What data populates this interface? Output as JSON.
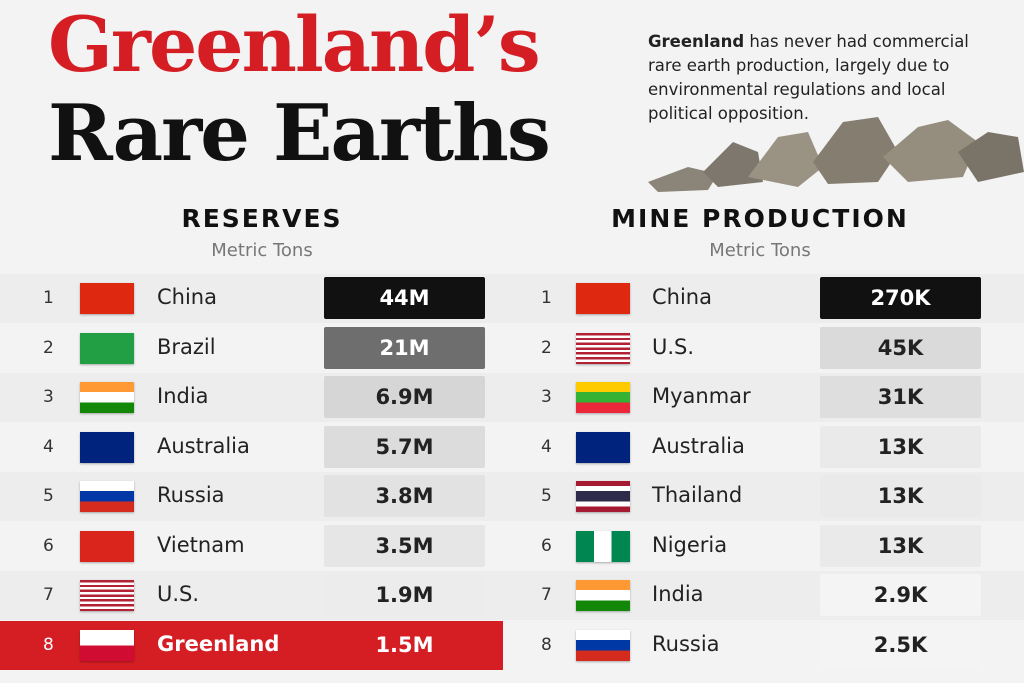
{
  "header": {
    "title_line1": "Greenland’s",
    "title_line2": "Rare Earths",
    "intro_bold": "Greenland",
    "intro_rest": " has never had commercial rare earth production, largely due to environmental regulations and local political opposition."
  },
  "reserves": {
    "heading": "RESERVES",
    "unit": "Metric Tons",
    "rows": [
      [
        1,
        "China",
        "44M"
      ],
      [
        2,
        "Brazil",
        "21M"
      ],
      [
        3,
        "India",
        "6.9M"
      ],
      [
        4,
        "Australia",
        "5.7M"
      ],
      [
        5,
        "Russia",
        "3.8M"
      ],
      [
        6,
        "Vietnam",
        "3.5M"
      ],
      [
        7,
        "U.S.",
        "1.9M"
      ],
      [
        8,
        "Greenland",
        "1.5M"
      ]
    ]
  },
  "production": {
    "heading": "MINE PRODUCTION",
    "unit": "Metric Tons",
    "rows": [
      [
        1,
        "China",
        "270K"
      ],
      [
        2,
        "U.S.",
        "45K"
      ],
      [
        3,
        "Myanmar",
        "31K"
      ],
      [
        4,
        "Australia",
        "13K"
      ],
      [
        5,
        "Thailand",
        "13K"
      ],
      [
        6,
        "Nigeria",
        "13K"
      ],
      [
        7,
        "India",
        "2.9K"
      ],
      [
        8,
        "Russia",
        "2.5K"
      ]
    ]
  }
}
